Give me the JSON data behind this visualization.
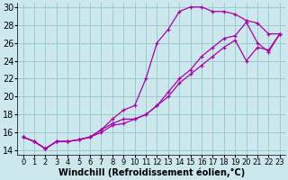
{
  "xlabel": "Windchill (Refroidissement éolien,°C)",
  "bg_color": "#cce8ec",
  "grid_color": "#99ccd4",
  "line_color": "#aa00aa",
  "xlim": [
    -0.5,
    23.5
  ],
  "ylim": [
    13.5,
    30.5
  ],
  "xticks": [
    0,
    1,
    2,
    3,
    4,
    5,
    6,
    7,
    8,
    9,
    10,
    11,
    12,
    13,
    14,
    15,
    16,
    17,
    18,
    19,
    20,
    21,
    22,
    23
  ],
  "yticks": [
    14,
    16,
    18,
    20,
    22,
    24,
    26,
    28,
    30
  ],
  "curve1_x": [
    0,
    1,
    2,
    3,
    4,
    5,
    6,
    7,
    8,
    9,
    10,
    11,
    12,
    13,
    14,
    15,
    16,
    17,
    18,
    19,
    20,
    21,
    22,
    23
  ],
  "curve1_y": [
    15.5,
    15.0,
    14.2,
    15.0,
    15.0,
    15.2,
    15.5,
    16.3,
    17.5,
    18.5,
    19.0,
    22.0,
    26.0,
    27.5,
    29.5,
    30.0,
    30.0,
    29.5,
    29.5,
    29.2,
    28.5,
    28.2,
    27.0,
    27.0
  ],
  "curve2_x": [
    0,
    1,
    2,
    3,
    4,
    5,
    6,
    7,
    8,
    9,
    10,
    11,
    12,
    13,
    14,
    15,
    16,
    17,
    18,
    19,
    20,
    21,
    22,
    23
  ],
  "curve2_y": [
    15.5,
    15.0,
    14.2,
    15.0,
    15.0,
    15.2,
    15.5,
    16.3,
    17.0,
    17.5,
    17.5,
    18.0,
    19.0,
    20.5,
    22.0,
    23.0,
    24.5,
    25.5,
    26.5,
    26.8,
    28.3,
    26.0,
    25.0,
    27.0
  ],
  "curve3_x": [
    0,
    1,
    2,
    3,
    4,
    5,
    6,
    7,
    8,
    9,
    10,
    11,
    12,
    13,
    14,
    15,
    16,
    17,
    18,
    19,
    20,
    21,
    22,
    23
  ],
  "curve3_y": [
    15.5,
    15.0,
    14.2,
    15.0,
    15.0,
    15.2,
    15.5,
    16.0,
    16.8,
    17.0,
    17.5,
    18.0,
    19.0,
    20.0,
    21.5,
    22.5,
    23.5,
    24.5,
    25.5,
    26.3,
    24.0,
    25.5,
    25.2,
    27.0
  ],
  "xlabel_fontsize": 7,
  "ytick_fontsize": 7,
  "xtick_fontsize": 6
}
